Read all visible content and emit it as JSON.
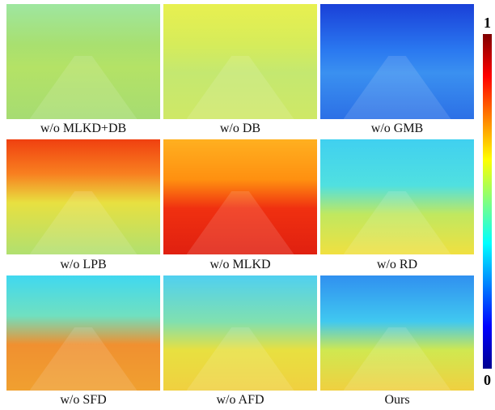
{
  "panels": [
    {
      "caption": "w/o MLKD+DB"
    },
    {
      "caption": "w/o DB"
    },
    {
      "caption": "w/o GMB"
    },
    {
      "caption": "w/o LPB"
    },
    {
      "caption": "w/o MLKD"
    },
    {
      "caption": "w/o RD"
    },
    {
      "caption": "w/o SFD"
    },
    {
      "caption": "w/o AFD"
    },
    {
      "caption": "Ours"
    }
  ],
  "colorbar": {
    "max": 1,
    "min": 0
  }
}
